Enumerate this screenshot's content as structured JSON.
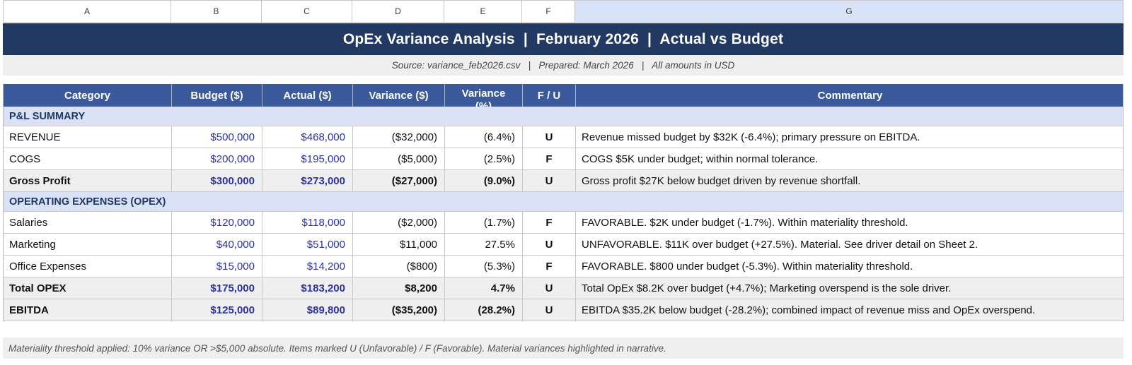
{
  "spreadsheet": {
    "column_letters": [
      "A",
      "B",
      "C",
      "D",
      "E",
      "F",
      "G"
    ],
    "selected_column": "G"
  },
  "title_banner": {
    "text": "OpEx Variance Analysis  |  February 2026  |  Actual vs Budget"
  },
  "source_line": {
    "text": "Source: variance_feb2026.csv   |   Prepared: March 2026   |   All amounts in USD"
  },
  "table": {
    "columns": [
      "Category",
      "Budget ($)",
      "Actual ($)",
      "Variance ($)",
      "Variance (%)",
      "F / U",
      "Commentary"
    ],
    "rows": [
      {
        "kind": "section",
        "label": "P&L SUMMARY"
      },
      {
        "kind": "data",
        "category": "REVENUE",
        "budget": "$500,000",
        "actual": "$468,000",
        "variance": "($32,000)",
        "variance_pct": "(6.4%)",
        "fu": "U",
        "commentary": "Revenue missed budget by $32K (-6.4%); primary pressure on EBITDA."
      },
      {
        "kind": "data",
        "category": "COGS",
        "budget": "$200,000",
        "actual": "$195,000",
        "variance": "($5,000)",
        "variance_pct": "(2.5%)",
        "fu": "F",
        "commentary": "COGS $5K under budget; within normal tolerance."
      },
      {
        "kind": "subtotal",
        "category": "Gross Profit",
        "budget": "$300,000",
        "actual": "$273,000",
        "variance": "($27,000)",
        "variance_pct": "(9.0%)",
        "fu": "U",
        "commentary": "Gross profit $27K below budget driven by revenue shortfall."
      },
      {
        "kind": "section",
        "label": "OPERATING EXPENSES (OPEX)"
      },
      {
        "kind": "data",
        "category": "Salaries",
        "budget": "$120,000",
        "actual": "$118,000",
        "variance": "($2,000)",
        "variance_pct": "(1.7%)",
        "fu": "F",
        "commentary": "FAVORABLE. $2K under budget (-1.7%). Within materiality threshold."
      },
      {
        "kind": "data",
        "category": "Marketing",
        "budget": "$40,000",
        "actual": "$51,000",
        "variance": "$11,000",
        "variance_pct": "27.5%",
        "fu": "U",
        "commentary": "UNFAVORABLE. $11K over budget (+27.5%). Material. See driver detail on Sheet 2."
      },
      {
        "kind": "data",
        "category": "Office Expenses",
        "budget": "$15,000",
        "actual": "$14,200",
        "variance": "($800)",
        "variance_pct": "(5.3%)",
        "fu": "F",
        "commentary": "FAVORABLE. $800 under budget (-5.3%). Within materiality threshold."
      },
      {
        "kind": "subtotal",
        "category": "Total OPEX",
        "budget": "$175,000",
        "actual": "$183,200",
        "variance": "$8,200",
        "variance_pct": "4.7%",
        "fu": "U",
        "commentary": "Total OpEx $8.2K over budget (+4.7%); Marketing overspend is the sole driver."
      },
      {
        "kind": "subtotal",
        "category": "EBITDA",
        "budget": "$125,000",
        "actual": "$89,800",
        "variance": "($35,200)",
        "variance_pct": "(28.2%)",
        "fu": "U",
        "commentary": "EBITDA $35.2K below budget (-28.2%); combined impact of revenue miss and OpEx overspend."
      }
    ]
  },
  "footer_note": {
    "text": "Materiality threshold applied: 10% variance OR >$5,000 absolute. Items marked U (Unfavorable) / F (Favorable). Material variances highlighted in narrative."
  },
  "colors": {
    "banner_bg": "#223a63",
    "table_header_bg": "#3a5a9b",
    "section_row_bg": "#dbe2f6",
    "section_text": "#1e3866",
    "subtotal_row_bg": "#efefef",
    "value_blue": "#2b32a1",
    "selected_column_bg": "#d8e3fa",
    "note_bg": "#efefef",
    "grid_border": "#c9c9c9"
  }
}
